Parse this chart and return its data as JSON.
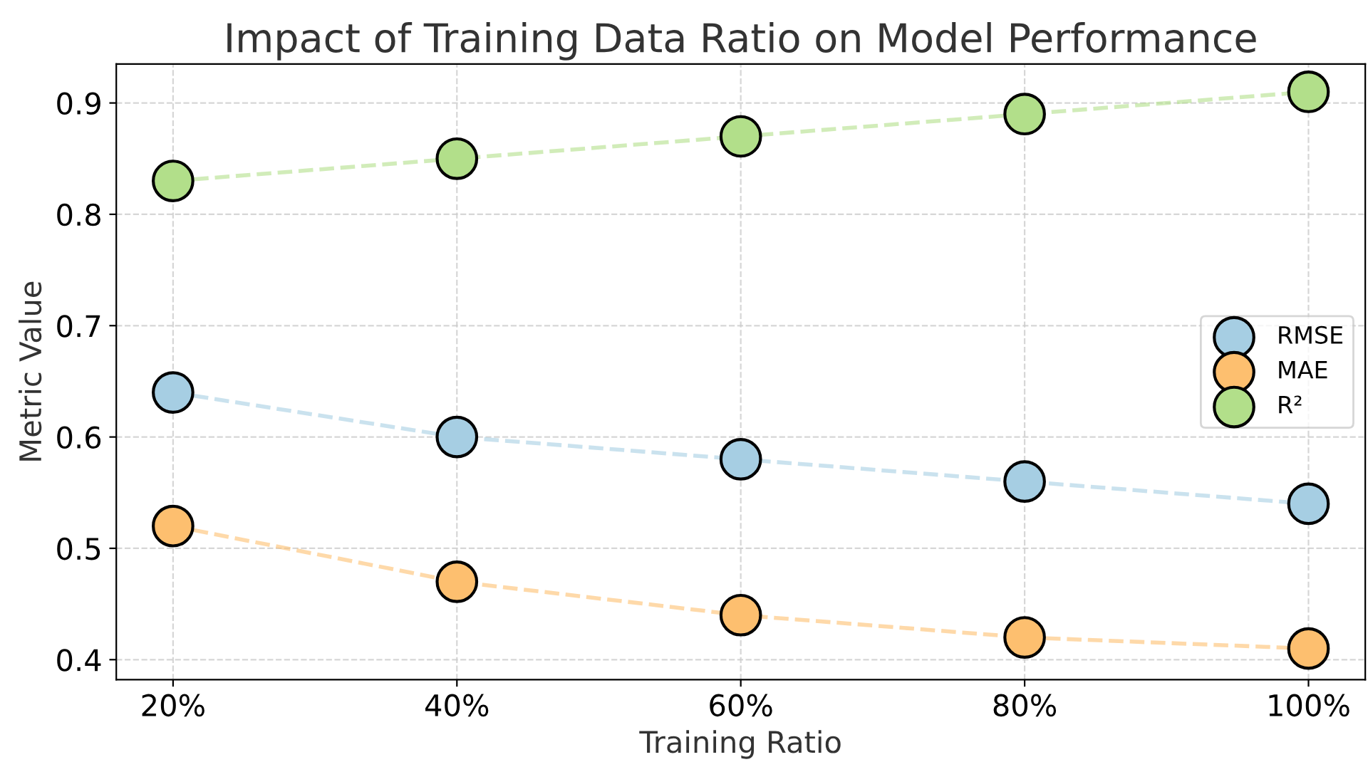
{
  "chart_data": {
    "type": "line",
    "title": "Impact of Training Data Ratio on Model Performance",
    "xlabel": "Training Ratio",
    "ylabel": "Metric Value",
    "categories": [
      "20%",
      "40%",
      "60%",
      "80%",
      "100%"
    ],
    "series": [
      {
        "name": "RMSE",
        "color": "#a6cee3",
        "values": [
          0.64,
          0.6,
          0.58,
          0.56,
          0.54
        ]
      },
      {
        "name": "MAE",
        "color": "#fdbf6f",
        "values": [
          0.52,
          0.47,
          0.44,
          0.42,
          0.41
        ]
      },
      {
        "name": "R²",
        "color": "#b2df8a",
        "values": [
          0.83,
          0.85,
          0.87,
          0.89,
          0.91
        ]
      }
    ],
    "ylim": [
      0.382,
      0.935
    ],
    "yticks": [
      0.4,
      0.5,
      0.6,
      0.7,
      0.8,
      0.9
    ],
    "grid": true,
    "legend": "right",
    "marker": "circle",
    "line_style": "dashed"
  }
}
